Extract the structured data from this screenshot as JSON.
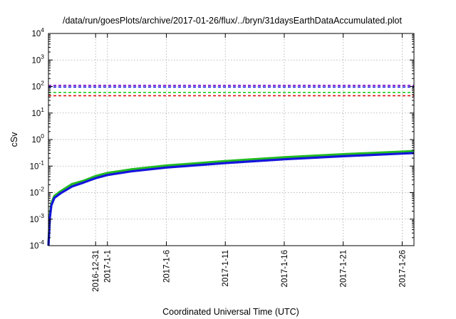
{
  "chart_data": {
    "type": "line",
    "title": "/data/run/goesPlots/archive/2017-01-26/flux/../bryn/31daysEarthDataAccumulated.plot",
    "xlabel": "Coordinated Universal Time (UTC)",
    "ylabel": "cSv",
    "x_axis": {
      "type": "date",
      "range": [
        "2016-12-27",
        "2017-01-27"
      ],
      "ticks": [
        {
          "date": "2016-12-31",
          "label": "2016-12-31"
        },
        {
          "date": "2017-01-01",
          "label": "2017-1-1"
        },
        {
          "date": "2017-01-06",
          "label": "2017-1-6"
        },
        {
          "date": "2017-01-11",
          "label": "2017-1-11"
        },
        {
          "date": "2017-01-16",
          "label": "2017-1-16"
        },
        {
          "date": "2017-01-21",
          "label": "2017-1-21"
        },
        {
          "date": "2017-01-26",
          "label": "2017-1-26"
        }
      ]
    },
    "y_axis": {
      "scale": "log",
      "ylim": [
        0.0001,
        10000
      ],
      "ticks": [
        {
          "value": 0.0001,
          "base": "10",
          "exp": "-4"
        },
        {
          "value": 0.001,
          "base": "10",
          "exp": "-3"
        },
        {
          "value": 0.01,
          "base": "10",
          "exp": "-2"
        },
        {
          "value": 0.1,
          "base": "10",
          "exp": "-1"
        },
        {
          "value": 1,
          "base": "10",
          "exp": "0"
        },
        {
          "value": 10,
          "base": "10",
          "exp": "1"
        },
        {
          "value": 100,
          "base": "10",
          "exp": "2"
        },
        {
          "value": 1000,
          "base": "10",
          "exp": "3"
        },
        {
          "value": 10000,
          "base": "10",
          "exp": "4"
        }
      ]
    },
    "grid": true,
    "reference_lines": [
      {
        "value": 110,
        "color": "#7a00c8",
        "style": "dashed"
      },
      {
        "value": 95,
        "color": "#1a1ae6",
        "style": "dashed"
      },
      {
        "value": 60,
        "color": "#22cc22",
        "style": "dashed"
      },
      {
        "value": 45,
        "color": "#e01010",
        "style": "dashed"
      }
    ],
    "series": [
      {
        "color": "#22bb22",
        "points": [
          [
            "2016-12-27T00:00",
            0.0001
          ],
          [
            "2016-12-27T03:00",
            0.0015
          ],
          [
            "2016-12-27T06:00",
            0.004
          ],
          [
            "2016-12-27T12:00",
            0.0075
          ],
          [
            "2016-12-28T00:00",
            0.011
          ],
          [
            "2016-12-29T00:00",
            0.021
          ],
          [
            "2016-12-30T00:00",
            0.028
          ],
          [
            "2016-12-31T00:00",
            0.042
          ],
          [
            "2017-01-01T00:00",
            0.055
          ],
          [
            "2017-01-03T00:00",
            0.075
          ],
          [
            "2017-01-06T00:00",
            0.105
          ],
          [
            "2017-01-11T00:00",
            0.155
          ],
          [
            "2017-01-16T00:00",
            0.215
          ],
          [
            "2017-01-21T00:00",
            0.28
          ],
          [
            "2017-01-26T00:00",
            0.35
          ],
          [
            "2017-01-27T00:00",
            0.37
          ]
        ]
      },
      {
        "color": "#1515dd",
        "points": [
          [
            "2016-12-27T00:00",
            0.0001
          ],
          [
            "2016-12-27T03:00",
            0.0012
          ],
          [
            "2016-12-27T06:00",
            0.0033
          ],
          [
            "2016-12-27T12:00",
            0.0063
          ],
          [
            "2016-12-28T00:00",
            0.0092
          ],
          [
            "2016-12-29T00:00",
            0.017
          ],
          [
            "2016-12-30T00:00",
            0.024
          ],
          [
            "2016-12-31T00:00",
            0.035
          ],
          [
            "2017-01-01T00:00",
            0.046
          ],
          [
            "2017-01-03T00:00",
            0.063
          ],
          [
            "2017-01-06T00:00",
            0.088
          ],
          [
            "2017-01-11T00:00",
            0.13
          ],
          [
            "2017-01-16T00:00",
            0.18
          ],
          [
            "2017-01-21T00:00",
            0.235
          ],
          [
            "2017-01-26T00:00",
            0.295
          ],
          [
            "2017-01-27T00:00",
            0.31
          ]
        ]
      }
    ]
  }
}
